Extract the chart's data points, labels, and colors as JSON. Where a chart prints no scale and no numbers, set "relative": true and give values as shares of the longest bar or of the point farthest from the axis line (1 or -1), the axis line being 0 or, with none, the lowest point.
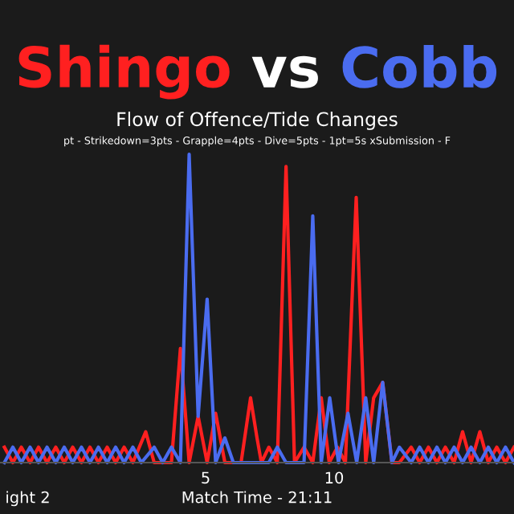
{
  "chart_data": {
    "type": "line",
    "title": "vs",
    "subtitle": "Flow of Offence/Tide Changes",
    "xlabel": "Match Time - 21:11",
    "annotations": [
      "pt - Strikedown=3pts - Grapple=4pts - Dive=5pts - 1pt=5s xSubmission - F",
      "ight 2"
    ],
    "relative": true,
    "xlim": [
      -3,
      17
    ],
    "xticks": [
      5,
      10
    ],
    "grid": false,
    "legend": false,
    "series": [
      {
        "name": "Shingo",
        "color": "#ff2020",
        "x": [
          -2.83,
          -2.5,
          -2.17,
          -1.83,
          -1.5,
          -1.17,
          -0.83,
          -0.5,
          -0.17,
          0.17,
          0.5,
          0.83,
          1.17,
          1.5,
          1.83,
          2.17,
          2.67,
          3.0,
          3.67,
          4.02,
          4.36,
          4.71,
          5.06,
          5.39,
          5.75,
          6.38,
          6.75,
          7.0,
          7.17,
          7.46,
          7.79,
          8.13,
          8.46,
          8.83,
          9.17,
          9.5,
          9.81,
          10.13,
          10.44,
          10.86,
          11.23,
          11.54,
          11.89,
          12.25,
          12.54,
          13.0,
          13.33,
          13.67,
          14.0,
          14.33,
          14.67,
          15.0,
          15.33,
          15.67,
          16.0,
          16.33,
          16.67,
          17.0
        ],
        "values": [
          0.05,
          0,
          0.05,
          0,
          0.05,
          0,
          0.05,
          0,
          0.05,
          0,
          0.05,
          0,
          0.05,
          0,
          0.05,
          0,
          0.1,
          0,
          0,
          0.37,
          0,
          0.15,
          0,
          0.16,
          0,
          0,
          0.21,
          0.08,
          0,
          0.05,
          0,
          0.96,
          0,
          0.05,
          0,
          0.21,
          0,
          0.05,
          0,
          0.86,
          0,
          0.21,
          0.26,
          0,
          0,
          0.05,
          0,
          0.05,
          0,
          0.05,
          0,
          0.1,
          0,
          0.1,
          0,
          0.05,
          0,
          0.05
        ]
      },
      {
        "name": "Cobb",
        "color": "#4a6cf0",
        "x": [
          -2.83,
          -2.5,
          -2.17,
          -1.83,
          -1.5,
          -1.17,
          -0.83,
          -0.5,
          -0.17,
          0.17,
          0.5,
          0.83,
          1.17,
          1.5,
          1.83,
          2.17,
          2.5,
          3.0,
          3.33,
          3.67,
          4.02,
          4.36,
          4.71,
          5.06,
          5.39,
          5.75,
          6.08,
          7.0,
          7.46,
          7.79,
          8.13,
          8.83,
          9.17,
          9.5,
          9.83,
          10.17,
          10.54,
          10.88,
          11.23,
          11.54,
          11.89,
          12.25,
          12.54,
          13.0,
          13.33,
          13.67,
          14.0,
          14.33,
          14.67,
          15.0,
          15.33,
          15.67,
          16.0,
          16.33,
          16.67,
          17.0
        ],
        "values": [
          0,
          0.05,
          0,
          0.05,
          0,
          0.05,
          0,
          0.05,
          0,
          0.05,
          0,
          0.05,
          0,
          0.05,
          0,
          0.05,
          0,
          0.05,
          0,
          0.05,
          0,
          1.0,
          0.15,
          0.53,
          0,
          0.08,
          0,
          0,
          0,
          0.05,
          0,
          0,
          0.8,
          0,
          0.21,
          0,
          0.16,
          0,
          0.21,
          0,
          0.26,
          0,
          0.05,
          0,
          0.05,
          0,
          0.05,
          0,
          0.05,
          0,
          0.05,
          0,
          0.05,
          0,
          0.05,
          0
        ]
      }
    ]
  }
}
